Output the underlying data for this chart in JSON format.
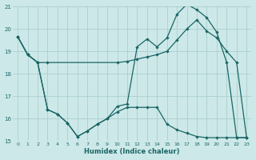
{
  "xlabel": "Humidex (Indice chaleur)",
  "bg_color": "#cde8e8",
  "grid_color": "#aacfcf",
  "line_color": "#1a6666",
  "xlim": [
    -0.5,
    23.5
  ],
  "ylim": [
    15,
    21
  ],
  "yticks": [
    15,
    16,
    17,
    18,
    19,
    20,
    21
  ],
  "xticks": [
    0,
    1,
    2,
    3,
    4,
    5,
    6,
    7,
    8,
    9,
    10,
    11,
    12,
    13,
    14,
    15,
    16,
    17,
    18,
    19,
    20,
    21,
    22,
    23
  ],
  "line1_x": [
    0,
    1,
    2,
    3,
    10,
    11,
    12,
    13,
    14,
    15,
    16,
    17,
    18,
    19,
    20,
    21,
    22,
    23
  ],
  "line1_y": [
    19.65,
    18.85,
    18.5,
    18.5,
    18.5,
    18.55,
    18.65,
    18.75,
    18.85,
    19.0,
    19.5,
    20.0,
    20.4,
    19.9,
    19.6,
    19.0,
    18.5,
    15.15
  ],
  "line2_x": [
    0,
    1,
    2,
    3,
    4,
    5,
    6,
    7,
    8,
    9,
    10,
    11,
    12,
    13,
    14,
    15,
    16,
    17,
    18,
    19,
    20,
    21,
    22,
    23
  ],
  "line2_y": [
    19.65,
    18.85,
    18.5,
    16.4,
    16.2,
    15.8,
    15.2,
    15.45,
    15.75,
    16.0,
    16.55,
    16.65,
    19.2,
    19.55,
    19.2,
    19.6,
    20.65,
    21.1,
    20.85,
    20.5,
    19.85,
    18.5,
    15.15,
    15.15
  ],
  "line3_x": [
    0,
    1,
    2,
    3,
    4,
    5,
    6,
    7,
    8,
    9,
    10,
    11,
    12,
    13,
    14,
    15,
    16,
    17,
    18,
    19,
    20,
    21,
    22,
    23
  ],
  "line3_y": [
    19.65,
    18.85,
    18.5,
    16.4,
    16.2,
    15.8,
    15.2,
    15.45,
    15.75,
    16.0,
    16.3,
    16.5,
    16.5,
    16.5,
    16.5,
    15.75,
    15.5,
    15.35,
    15.2,
    15.15,
    15.15,
    15.15,
    15.15,
    15.15
  ]
}
